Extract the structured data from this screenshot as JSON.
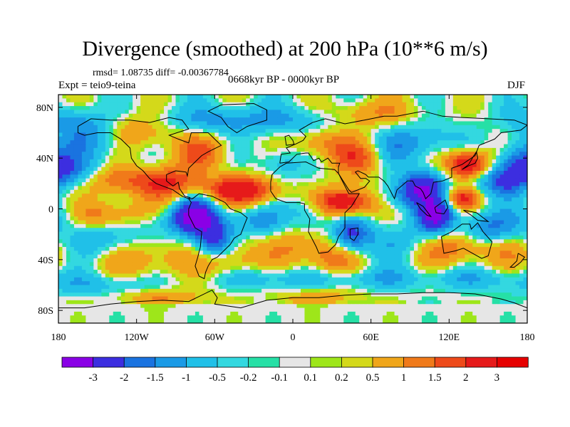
{
  "title": "Divergence (smoothed) at 200 hPa (10**6 m/s)",
  "stats": "rmsd= 1.08735 diff= -0.00367784",
  "experiment": "Expt = teio9-teina",
  "period": "0668kyr BP - 0000kyr BP",
  "season": "DJF",
  "axes": {
    "lat_ticks": [
      {
        "label": "80N",
        "value": 80
      },
      {
        "label": "40N",
        "value": 40
      },
      {
        "label": "0",
        "value": 0
      },
      {
        "label": "40S",
        "value": -40
      },
      {
        "label": "80S",
        "value": -80
      }
    ],
    "lon_ticks": [
      {
        "label": "180",
        "value": -180
      },
      {
        "label": "120W",
        "value": -120
      },
      {
        "label": "60W",
        "value": -60
      },
      {
        "label": "0",
        "value": 0
      },
      {
        "label": "60E",
        "value": 60
      },
      {
        "label": "120E",
        "value": 120
      },
      {
        "label": "180",
        "value": 180
      }
    ]
  },
  "colorbar": {
    "labels": [
      "-3",
      "-2",
      "-1.5",
      "-1",
      "-0.5",
      "-0.2",
      "-0.1",
      "0.1",
      "0.2",
      "0.5",
      "1",
      "1.5",
      "2",
      "3"
    ],
    "colors": [
      "#8a00e6",
      "#3c2ee0",
      "#1a73e0",
      "#1a9ae6",
      "#20c0e8",
      "#33d8e0",
      "#26e0a6",
      "#e6e6e6",
      "#9ee61a",
      "#d4d91a",
      "#f0a61a",
      "#f07a1a",
      "#ee4a1a",
      "#e61a1a",
      "#e60000"
    ]
  }
}
